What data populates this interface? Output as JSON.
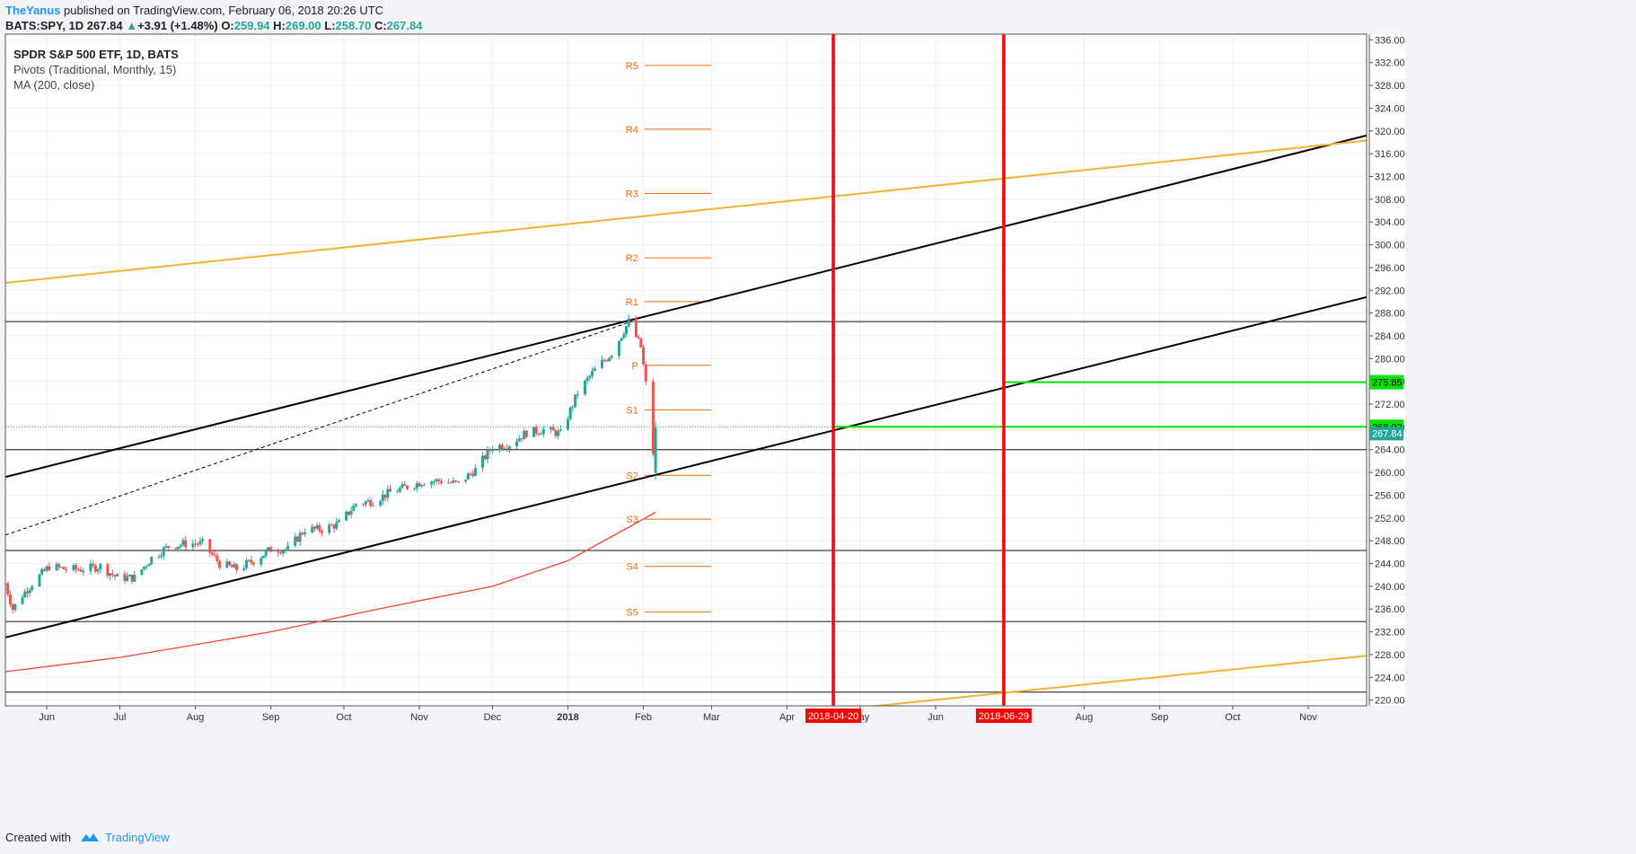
{
  "header": {
    "author": "TheYanus",
    "published": "published on TradingView.com, February 06, 2018 20:26 UTC",
    "symbol": "BATS:SPY, 1D",
    "last": "267.84",
    "change": "+3.91 (+1.48%)",
    "open_label": "O:",
    "open": "259.94",
    "high_label": "H:",
    "high": "269.00",
    "low_label": "L:",
    "low": "258.70",
    "close_label": "C:",
    "close": "267.84"
  },
  "legend": {
    "title": "SPDR S&P 500 ETF, 1D, BATS",
    "pivots": "Pivots (Traditional, Monthly, 15)",
    "ma": "MA (200, close)"
  },
  "footer": {
    "created": "Created with",
    "brand": "TradingView"
  },
  "colors": {
    "up": "#26a69a",
    "down": "#ef5350",
    "pivot": "#ef6c00",
    "ma": "#f44336",
    "gold": "#f2b233",
    "trend": "#000000",
    "marker": "#ff0000",
    "target": "#00e600"
  },
  "chart_data": {
    "type": "candlestick",
    "y_axis": {
      "min": 219,
      "max": 337,
      "ticks": [
        "220.00",
        "224.00",
        "228.00",
        "232.00",
        "236.00",
        "240.00",
        "244.00",
        "248.00",
        "252.00",
        "256.00",
        "260.00",
        "264.00",
        "268.00",
        "272.00",
        "276.00",
        "280.00",
        "284.00",
        "288.00",
        "292.00",
        "296.00",
        "300.00",
        "304.00",
        "308.00",
        "312.00",
        "316.00",
        "320.00",
        "324.00",
        "328.00",
        "332.00",
        "336.00"
      ],
      "tick_values": [
        220,
        224,
        228,
        232,
        236,
        240,
        244,
        248,
        252,
        256,
        260,
        264,
        268,
        272,
        276,
        280,
        284,
        288,
        292,
        296,
        300,
        304,
        308,
        312,
        316,
        320,
        324,
        328,
        332,
        336
      ]
    },
    "x_axis": {
      "labels": [
        "Jun",
        "Jul",
        "Aug",
        "Sep",
        "Oct",
        "Nov",
        "Dec",
        "2018",
        "Feb",
        "Mar",
        "Apr",
        "May",
        "Jun",
        "Aug",
        "Sep",
        "Oct",
        "Nov"
      ],
      "dates": [
        "2017-06-01",
        "2017-07-01",
        "2017-08-01",
        "2017-09-01",
        "2017-10-01",
        "2017-11-01",
        "2017-12-01",
        "2018-01-01",
        "2018-02-01",
        "2018-03-01",
        "2018-04-01",
        "2018-05-01",
        "2018-06-01",
        "2018-08-01",
        "2018-09-01",
        "2018-10-01",
        "2018-11-01"
      ],
      "range": [
        "2017-05-15",
        "2018-11-25"
      ]
    },
    "price_path": [
      [
        "2017-05-15",
        240.5
      ],
      [
        "2017-05-18",
        236.0
      ],
      [
        "2017-05-22",
        238.5
      ],
      [
        "2017-05-26",
        240.5
      ],
      [
        "2017-06-02",
        243.5
      ],
      [
        "2017-06-09",
        243.0
      ],
      [
        "2017-06-16",
        243.0
      ],
      [
        "2017-06-23",
        243.5
      ],
      [
        "2017-06-30",
        241.5
      ],
      [
        "2017-07-07",
        241.5
      ],
      [
        "2017-07-14",
        245.0
      ],
      [
        "2017-07-21",
        247.0
      ],
      [
        "2017-07-28",
        247.5
      ],
      [
        "2017-08-04",
        247.5
      ],
      [
        "2017-08-11",
        244.0
      ],
      [
        "2017-08-18",
        243.0
      ],
      [
        "2017-08-25",
        244.5
      ],
      [
        "2017-09-01",
        246.5
      ],
      [
        "2017-09-08",
        246.5
      ],
      [
        "2017-09-15",
        250.0
      ],
      [
        "2017-09-22",
        250.0
      ],
      [
        "2017-09-29",
        251.0
      ],
      [
        "2017-10-06",
        254.5
      ],
      [
        "2017-10-13",
        255.0
      ],
      [
        "2017-10-20",
        256.5
      ],
      [
        "2017-10-27",
        257.5
      ],
      [
        "2017-11-03",
        258.5
      ],
      [
        "2017-11-10",
        258.5
      ],
      [
        "2017-11-17",
        258.0
      ],
      [
        "2017-11-24",
        260.5
      ],
      [
        "2017-12-01",
        264.5
      ],
      [
        "2017-12-08",
        265.0
      ],
      [
        "2017-12-15",
        267.0
      ],
      [
        "2017-12-22",
        267.5
      ],
      [
        "2017-12-29",
        266.8
      ],
      [
        "2018-01-05",
        274.0
      ],
      [
        "2018-01-12",
        278.0
      ],
      [
        "2018-01-19",
        281.0
      ],
      [
        "2018-01-26",
        286.5
      ],
      [
        "2018-01-31",
        282.0
      ],
      [
        "2018-02-02",
        275.5
      ],
      [
        "2018-02-05",
        263.5
      ],
      [
        "2018-02-06",
        267.84
      ]
    ],
    "current_price": {
      "value": 267.84,
      "label": "267.84"
    },
    "ma200": [
      [
        "2017-05-15",
        225.0
      ],
      [
        "2017-07-01",
        227.5
      ],
      [
        "2017-09-01",
        232.0
      ],
      [
        "2017-10-15",
        236.0
      ],
      [
        "2017-12-01",
        240.0
      ],
      [
        "2018-01-01",
        244.5
      ],
      [
        "2018-02-06",
        253.0
      ]
    ],
    "pivots": [
      {
        "name": "R5",
        "value": 331.5
      },
      {
        "name": "R4",
        "value": 320.3
      },
      {
        "name": "R3",
        "value": 309.0
      },
      {
        "name": "R2",
        "value": 297.7
      },
      {
        "name": "R1",
        "value": 290.0
      },
      {
        "name": "P",
        "value": 278.8
      },
      {
        "name": "S1",
        "value": 271.0
      },
      {
        "name": "S2",
        "value": 259.5
      },
      {
        "name": "S3",
        "value": 251.8
      },
      {
        "name": "S4",
        "value": 243.5
      },
      {
        "name": "S5",
        "value": 235.5
      }
    ],
    "pivot_range": [
      "2018-01-31",
      "2018-03-01"
    ],
    "horizontal_lines": [
      286.5,
      264.0,
      246.3,
      233.8,
      221.4
    ],
    "trend_lines": [
      {
        "name": "channel-upper",
        "color": "trend",
        "from": [
          "2017-05-15",
          259.2
        ],
        "to": [
          "2018-11-25",
          319.2
        ]
      },
      {
        "name": "channel-lower",
        "color": "trend",
        "from": [
          "2017-05-15",
          231.0
        ],
        "to": [
          "2018-11-25",
          290.8
        ]
      },
      {
        "name": "gold-upper",
        "color": "gold",
        "from": [
          "2017-05-15",
          293.3
        ],
        "to": [
          "2018-11-25",
          318.3
        ]
      },
      {
        "name": "gold-lower",
        "color": "gold",
        "from": [
          "2018-05-01",
          218.7
        ],
        "to": [
          "2018-11-25",
          227.8
        ]
      },
      {
        "name": "dashed",
        "color": "trend",
        "dashed": true,
        "from": [
          "2017-05-15",
          249.0
        ],
        "to": [
          "2018-01-27",
          286.5
        ]
      }
    ],
    "vertical_markers": [
      {
        "date": "2018-04-20",
        "label": "2018-04-20"
      },
      {
        "date": "2018-06-29",
        "label": "2018-06-29"
      }
    ],
    "targets": [
      {
        "value": 268.02,
        "label": "268.02",
        "from": "2018-04-20"
      },
      {
        "value": 275.85,
        "label": "275.85",
        "from": "2018-06-29"
      }
    ]
  }
}
